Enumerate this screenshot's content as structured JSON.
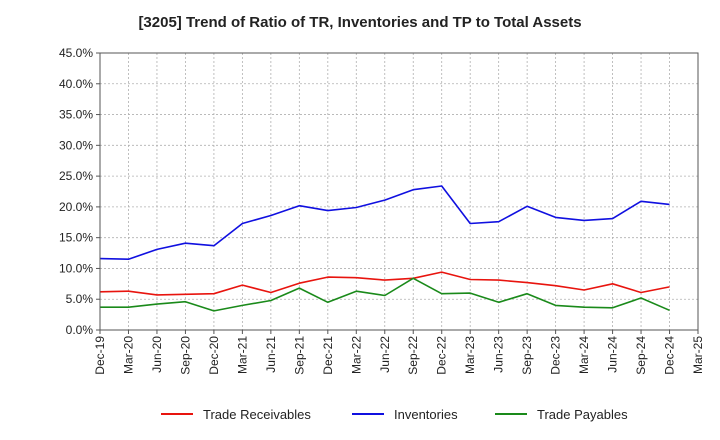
{
  "chart_data": {
    "type": "line",
    "title": "[3205]  Trend of Ratio of TR, Inventories and TP to Total Assets",
    "xlabel": "",
    "ylabel": "",
    "ylim": [
      0,
      45
    ],
    "y_ticks": [
      "0.0%",
      "5.0%",
      "10.0%",
      "15.0%",
      "20.0%",
      "25.0%",
      "30.0%",
      "35.0%",
      "40.0%",
      "45.0%"
    ],
    "x_ticks": [
      "Dec-19",
      "Mar-20",
      "Jun-20",
      "Sep-20",
      "Dec-20",
      "Mar-21",
      "Jun-21",
      "Sep-21",
      "Dec-21",
      "Mar-22",
      "Jun-22",
      "Sep-22",
      "Dec-22",
      "Mar-23",
      "Jun-23",
      "Sep-23",
      "Dec-23",
      "Mar-24",
      "Jun-24",
      "Sep-24",
      "Dec-24",
      "Mar-25"
    ],
    "grid": true,
    "legend_position": "bottom",
    "series": [
      {
        "name": "Trade Receivables",
        "color": "#e8140e",
        "x": [
          "Dec-19",
          "Mar-20",
          "Jun-20",
          "Sep-20",
          "Dec-20",
          "Mar-21",
          "Jun-21",
          "Sep-21",
          "Dec-21",
          "Mar-22",
          "Jun-22",
          "Sep-22",
          "Dec-22",
          "Mar-23",
          "Jun-23",
          "Sep-23",
          "Dec-23",
          "Mar-24",
          "Jun-24",
          "Sep-24",
          "Dec-24"
        ],
        "values": [
          6.2,
          6.3,
          5.7,
          5.8,
          5.9,
          7.3,
          6.1,
          7.6,
          8.6,
          8.5,
          8.1,
          8.4,
          9.4,
          8.2,
          8.1,
          7.7,
          7.2,
          6.5,
          7.5,
          6.1,
          7.0
        ]
      },
      {
        "name": "Inventories",
        "color": "#1010e0",
        "x": [
          "Dec-19",
          "Mar-20",
          "Jun-20",
          "Sep-20",
          "Dec-20",
          "Mar-21",
          "Jun-21",
          "Sep-21",
          "Dec-21",
          "Mar-22",
          "Jun-22",
          "Sep-22",
          "Dec-22",
          "Mar-23",
          "Jun-23",
          "Sep-23",
          "Dec-23",
          "Mar-24",
          "Jun-24",
          "Sep-24",
          "Dec-24"
        ],
        "values": [
          11.6,
          11.5,
          13.1,
          14.1,
          13.7,
          17.3,
          18.6,
          20.2,
          19.4,
          19.9,
          21.1,
          22.8,
          23.4,
          17.3,
          17.6,
          20.1,
          18.3,
          17.8,
          18.1,
          20.9,
          20.4
        ]
      },
      {
        "name": "Trade Payables",
        "color": "#1a8a1a",
        "x": [
          "Dec-19",
          "Mar-20",
          "Jun-20",
          "Sep-20",
          "Dec-20",
          "Mar-21",
          "Jun-21",
          "Sep-21",
          "Dec-21",
          "Mar-22",
          "Jun-22",
          "Sep-22",
          "Dec-22",
          "Mar-23",
          "Jun-23",
          "Sep-23",
          "Dec-23",
          "Mar-24",
          "Jun-24",
          "Sep-24",
          "Dec-24"
        ],
        "values": [
          3.7,
          3.7,
          4.2,
          4.6,
          3.1,
          4.0,
          4.8,
          6.8,
          4.5,
          6.3,
          5.6,
          8.4,
          5.9,
          6.0,
          4.5,
          5.9,
          4.0,
          3.7,
          3.6,
          5.2,
          3.2
        ]
      }
    ]
  }
}
